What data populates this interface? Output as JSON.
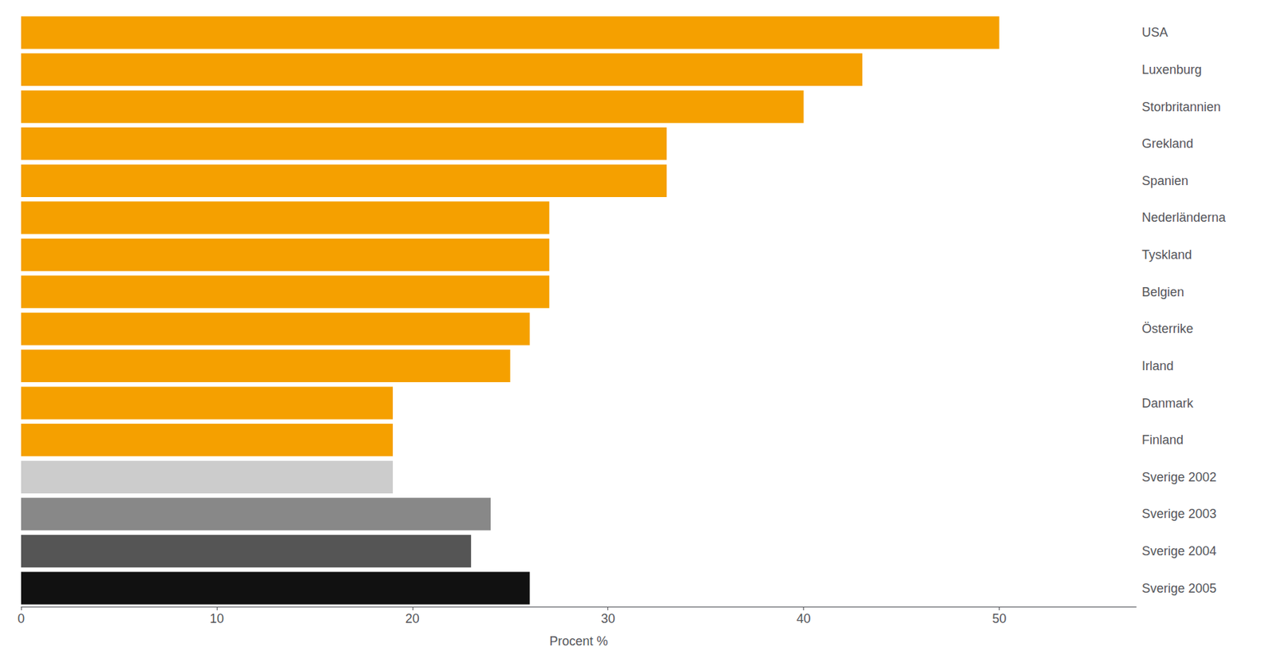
{
  "chart_data": {
    "type": "bar",
    "orientation": "horizontal",
    "categories": [
      "Sverige 2005",
      "Sverige 2004",
      "Sverige 2003",
      "Sverige 2002",
      "Finland",
      "Danmark",
      "Irland",
      "Österrike",
      "Belgien",
      "Tyskland",
      "Nederländerna",
      "Spanien",
      "Grekland",
      "Storbritannien",
      "Luxenburg",
      "USA"
    ],
    "values": [
      26,
      23,
      24,
      19,
      19,
      19,
      25,
      26,
      27,
      27,
      27,
      33,
      33,
      40,
      43,
      50
    ],
    "colors": [
      "#111111",
      "#555555",
      "#888888",
      "#cccccc",
      "#f5a000",
      "#f5a000",
      "#f5a000",
      "#f5a000",
      "#f5a000",
      "#f5a000",
      "#f5a000",
      "#f5a000",
      "#f5a000",
      "#f5a000",
      "#f5a000",
      "#f5a000"
    ],
    "xlabel": "Procent %",
    "xlim": [
      0,
      57
    ],
    "xticks": [
      0,
      10,
      20,
      30,
      40,
      50
    ],
    "grid": false
  }
}
